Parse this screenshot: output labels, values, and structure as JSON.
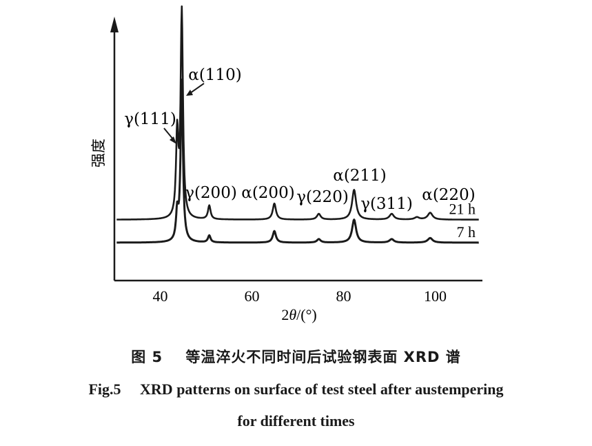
{
  "chart_data": {
    "type": "line",
    "xlabel": "2θ/(°)",
    "ylabel": "强度",
    "xlim": [
      30,
      110
    ],
    "xticks": [
      40,
      60,
      80,
      100
    ],
    "y_axis_ticks": "none",
    "grid": false,
    "series": [
      {
        "name": "21 h",
        "baseline": 10,
        "peaks": [
          {
            "label": "γ(111)",
            "x": 43.7,
            "height": 36
          },
          {
            "label": "α(110)",
            "x": 44.7,
            "height": 90
          },
          {
            "label": "γ(200)",
            "x": 50.7,
            "height": 6
          },
          {
            "label": "α(200)",
            "x": 64.9,
            "height": 7
          },
          {
            "label": "γ(220)",
            "x": 74.6,
            "height": 2.5
          },
          {
            "label": "α(211)",
            "x": 82.3,
            "height": 13
          },
          {
            "label": "γ(311)",
            "x": 90.5,
            "height": 2.5
          },
          {
            "label": "",
            "x": 96.0,
            "height": 1
          },
          {
            "label": "α(220)",
            "x": 98.9,
            "height": 3
          }
        ]
      },
      {
        "name": "7 h",
        "baseline": 0,
        "peaks": [
          {
            "label": "γ(111)",
            "x": 43.7,
            "height": 12
          },
          {
            "label": "α(110)",
            "x": 44.7,
            "height": 70
          },
          {
            "label": "γ(200)",
            "x": 50.7,
            "height": 3
          },
          {
            "label": "α(200)",
            "x": 64.9,
            "height": 5
          },
          {
            "label": "γ(220)",
            "x": 74.6,
            "height": 1.5
          },
          {
            "label": "α(211)",
            "x": 82.3,
            "height": 10
          },
          {
            "label": "γ(311)",
            "x": 90.5,
            "height": 1.5
          },
          {
            "label": "α(220)",
            "x": 98.9,
            "height": 2
          }
        ]
      }
    ],
    "peak_labels": [
      "γ(111)",
      "α(110)",
      "γ(200)",
      "α(200)",
      "γ(220)",
      "α(211)",
      "γ(311)",
      "α(220)"
    ]
  },
  "caption": {
    "cn_label": "图 5",
    "cn_text": "等温淬火不同时间后试验钢表面 XRD 谱",
    "en_label": "Fig.5",
    "en_line1": "XRD patterns on surface of test steel after austempering",
    "en_line2": "for different times"
  }
}
